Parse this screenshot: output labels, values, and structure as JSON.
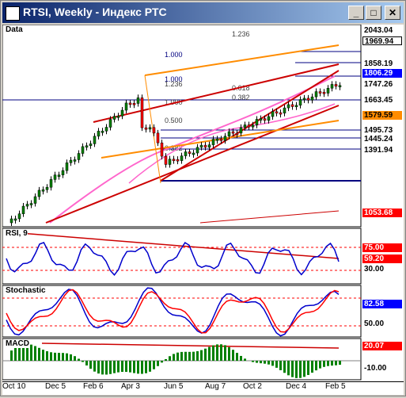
{
  "window": {
    "title": "RTSI, Weekly - Индекс РТС",
    "minimize": "_",
    "maximize": "□",
    "close": "✕"
  },
  "panes": {
    "price": "Data",
    "rsi": "RSI, 9",
    "stochastic": "Stochastic",
    "macd": "MACD"
  },
  "price_scale": [
    "2043.04",
    "1969.94",
    "1858.19",
    "1806.29",
    "1747.26",
    "1663.45",
    "1579.59",
    "1495.73",
    "1445.24",
    "1391.94",
    "1053.68"
  ],
  "price_boxes": [
    {
      "label": "2043.04",
      "bg": "#ffffff",
      "fg": "#000000"
    },
    {
      "label": "1969.94",
      "bg": "#ffffff",
      "fg": "#000000"
    },
    {
      "label": "1858.19",
      "bg": "#ffffff",
      "fg": "#000000"
    },
    {
      "label": "1806.29",
      "bg": "#0000ff",
      "fg": "#ffffff"
    },
    {
      "label": "1747.26",
      "bg": "#ffffff",
      "fg": "#000000"
    },
    {
      "label": "1663.45",
      "bg": "#ffffff",
      "fg": "#000000"
    },
    {
      "label": "1579.59",
      "bg": "#ff8c00",
      "fg": "#000000"
    },
    {
      "label": "1495.73",
      "bg": "#ffffff",
      "fg": "#000000"
    },
    {
      "label": "1445.24",
      "bg": "#ffffff",
      "fg": "#000000"
    },
    {
      "label": "1391.94",
      "bg": "#ffffff",
      "fg": "#000000"
    },
    {
      "label": "1053.68",
      "bg": "#ff0000",
      "fg": "#ffffff"
    }
  ],
  "fib_labels": [
    "1.236",
    "1.000",
    "1.000",
    "1.236",
    "0.618",
    "0.382",
    "1.000",
    "0.500",
    "0.382"
  ],
  "rsi_scale": [
    "75.00",
    "59.20",
    "30.00"
  ],
  "stoch_scale": [
    "82.58",
    "50.00"
  ],
  "macd_scale": [
    "20.07",
    "-10.00"
  ],
  "x_axis": [
    "Oct 10",
    "Dec 5",
    "Feb 6",
    "Apr 3",
    "Jun 5",
    "Aug 7",
    "Oct 2",
    "Dec 4",
    "Feb 5"
  ],
  "colors": {
    "up": "#008000",
    "down": "#ff0000",
    "rsi": "#0000cc",
    "signal": "#ff0000",
    "ma": "#ff66cc",
    "channel": "#cc0000",
    "fan": "#ff8c00"
  }
}
